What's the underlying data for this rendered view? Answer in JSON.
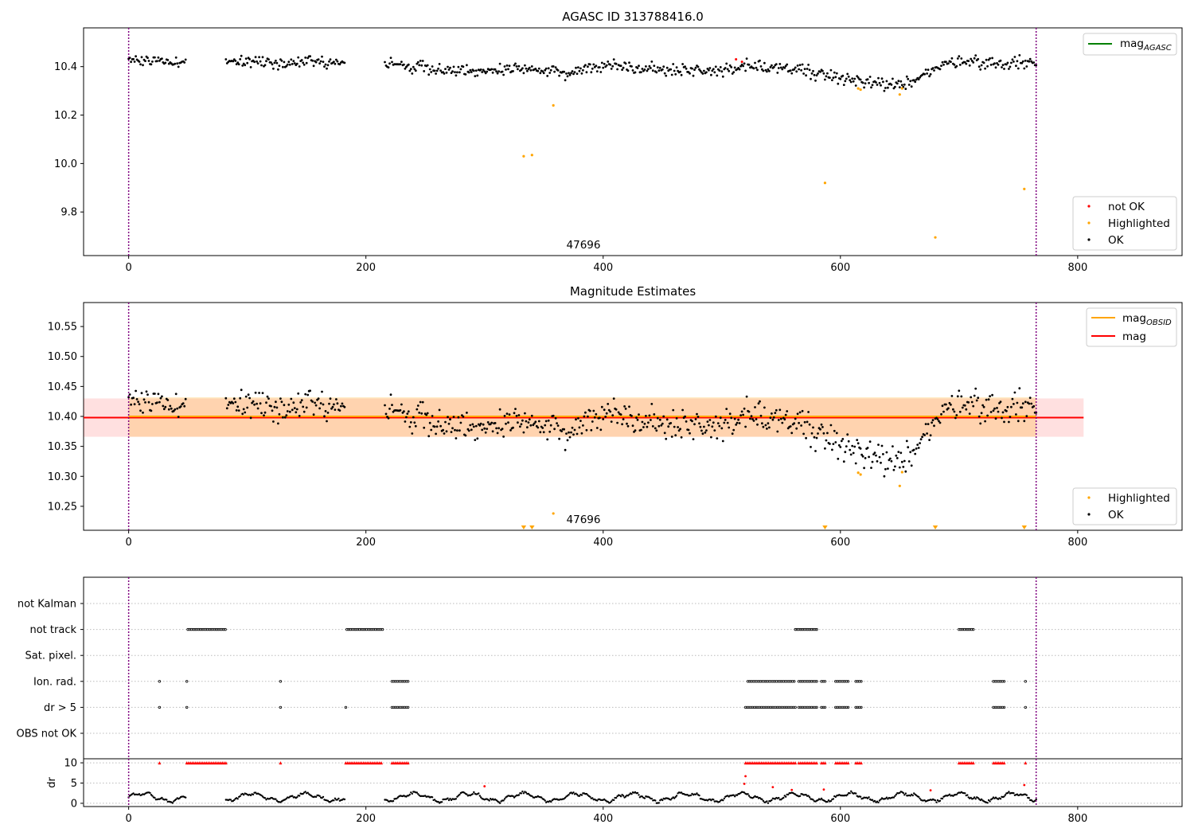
{
  "colors": {
    "ok": "#000000",
    "highlighted": "#ffa500",
    "not_ok": "#ff0000",
    "mag_agasc": "#008000",
    "mag_obsid": "#ffa500",
    "mag": "#ff0000",
    "boundary": "#800080"
  },
  "chart_data": [
    {
      "type": "scatter",
      "title": "AGASC ID 313788416.0",
      "xlim": [
        -38,
        888
      ],
      "ylim": [
        9.62,
        10.56
      ],
      "x_ticks": [
        0,
        200,
        400,
        600,
        800
      ],
      "x_tick_labels": [
        "0",
        "200",
        "400",
        "600",
        "800"
      ],
      "y_ticks": [
        9.8,
        10.0,
        10.2,
        10.4
      ],
      "y_tick_labels": [
        "9.8",
        "10.0",
        "10.2",
        "10.4"
      ],
      "obsid_boundaries": [
        0,
        765
      ],
      "obsid_label": {
        "text": "47696",
        "x": 382
      },
      "legend_upper_right": [
        {
          "label": "mag",
          "subscript": "AGASC",
          "kind": "line",
          "color_key": "mag_agasc"
        }
      ],
      "legend_lower_right": [
        {
          "label": "not OK",
          "kind": "dot",
          "color_key": "not_ok"
        },
        {
          "label": "Highlighted",
          "kind": "dot",
          "color_key": "highlighted"
        },
        {
          "label": "OK",
          "kind": "dot",
          "color_key": "ok"
        }
      ],
      "segments": [
        [
          0,
          48
        ],
        [
          82,
          182
        ],
        [
          216,
          765
        ]
      ],
      "trend": [
        [
          0,
          10.43
        ],
        [
          50,
          10.42
        ],
        [
          100,
          10.42
        ],
        [
          150,
          10.42
        ],
        [
          180,
          10.42
        ],
        [
          220,
          10.41
        ],
        [
          260,
          10.39
        ],
        [
          300,
          10.38
        ],
        [
          340,
          10.39
        ],
        [
          370,
          10.37
        ],
        [
          400,
          10.41
        ],
        [
          440,
          10.39
        ],
        [
          500,
          10.38
        ],
        [
          520,
          10.41
        ],
        [
          560,
          10.39
        ],
        [
          590,
          10.37
        ],
        [
          620,
          10.33
        ],
        [
          650,
          10.32
        ],
        [
          670,
          10.37
        ],
        [
          700,
          10.43
        ],
        [
          730,
          10.41
        ],
        [
          765,
          10.42
        ]
      ],
      "highlighted_points": [
        [
          333,
          10.03
        ],
        [
          340,
          10.035
        ],
        [
          358,
          10.24
        ],
        [
          615,
          10.31
        ],
        [
          617,
          10.305
        ],
        [
          650,
          10.285
        ],
        [
          652,
          10.31
        ],
        [
          587,
          9.92
        ],
        [
          680,
          9.695
        ],
        [
          755,
          9.895
        ]
      ]
    },
    {
      "type": "scatter",
      "title": "Magnitude Estimates",
      "xlim": [
        -38,
        888
      ],
      "ylim": [
        10.21,
        10.59
      ],
      "x_ticks": [
        0,
        200,
        400,
        600,
        800
      ],
      "x_tick_labels": [
        "0",
        "200",
        "400",
        "600",
        "800"
      ],
      "y_ticks": [
        10.25,
        10.3,
        10.35,
        10.4,
        10.45,
        10.5,
        10.55
      ],
      "y_tick_labels": [
        "10.25",
        "10.30",
        "10.35",
        "10.40",
        "10.45",
        "10.50",
        "10.55"
      ],
      "obsid_boundaries": [
        0,
        765
      ],
      "obsid_label": {
        "text": "47696",
        "x": 382
      },
      "mag": 10.398,
      "mag_band": [
        10.366,
        10.43
      ],
      "mag_band_x": [
        -38,
        805
      ],
      "mag_obsid": 10.4,
      "mag_obsid_band": [
        10.366,
        10.432
      ],
      "mag_obsid_x": [
        0,
        765
      ],
      "legend_upper_right": [
        {
          "label": "mag",
          "subscript": "OBSID",
          "kind": "line",
          "color_key": "mag_obsid"
        },
        {
          "label": "mag",
          "subscript": "",
          "kind": "line",
          "color_key": "mag"
        }
      ],
      "legend_lower_right": [
        {
          "label": "Highlighted",
          "kind": "dot",
          "color_key": "highlighted"
        },
        {
          "label": "OK",
          "kind": "dot",
          "color_key": "ok"
        }
      ],
      "highlighted_points": [
        [
          358,
          10.238
        ],
        [
          615,
          10.306
        ],
        [
          617,
          10.303
        ],
        [
          650,
          10.284
        ],
        [
          652,
          10.307
        ]
      ],
      "offscale_markers_x": [
        333,
        340,
        587,
        680,
        755
      ]
    },
    {
      "type": "scatter",
      "title": "",
      "xlim": [
        -38,
        888
      ],
      "flag_rows": [
        "not Kalman",
        "not track",
        "Sat. pixel.",
        "Ion. rad.",
        "dr > 5",
        "OBS not OK"
      ],
      "flag_ranges": {
        "not Kalman": [],
        "not track": [
          [
            50,
            82
          ],
          [
            184,
            214
          ],
          [
            562,
            580
          ],
          [
            700,
            712
          ]
        ],
        "Sat. pixel.": [],
        "Ion. rad.": [
          [
            26,
            26
          ],
          [
            49,
            49
          ],
          [
            128,
            128
          ],
          [
            222,
            236
          ],
          [
            522,
            562
          ],
          [
            565,
            580
          ],
          [
            584,
            587
          ],
          [
            596,
            607
          ],
          [
            613,
            618
          ],
          [
            729,
            739
          ],
          [
            756,
            756
          ]
        ],
        "dr > 5": [
          [
            26,
            26
          ],
          [
            49,
            49
          ],
          [
            128,
            128
          ],
          [
            183,
            183
          ],
          [
            222,
            236
          ],
          [
            520,
            562
          ],
          [
            565,
            580
          ],
          [
            584,
            587
          ],
          [
            596,
            607
          ],
          [
            613,
            618
          ],
          [
            729,
            739
          ],
          [
            756,
            756
          ]
        ],
        "OBS not OK": []
      }
    },
    {
      "type": "scatter",
      "title": "",
      "xlim": [
        -38,
        888
      ],
      "ylim": [
        -0.8,
        11
      ],
      "ylabel": "dr",
      "x_ticks": [
        0,
        200,
        400,
        600,
        800
      ],
      "x_tick_labels": [
        "0",
        "200",
        "400",
        "600",
        "800"
      ],
      "y_ticks": [
        0,
        5,
        10
      ],
      "y_tick_labels": [
        "0",
        "5",
        "10"
      ],
      "obsid_boundaries": [
        0,
        765
      ],
      "segments": [
        [
          0,
          48
        ],
        [
          82,
          182
        ],
        [
          216,
          765
        ]
      ],
      "not_ok_capped_ranges": [
        [
          26,
          26
        ],
        [
          49,
          82
        ],
        [
          128,
          128
        ],
        [
          183,
          214
        ],
        [
          222,
          236
        ],
        [
          520,
          562
        ],
        [
          565,
          580
        ],
        [
          584,
          587
        ],
        [
          596,
          607
        ],
        [
          613,
          618
        ],
        [
          700,
          712
        ],
        [
          729,
          739
        ],
        [
          756,
          756
        ]
      ],
      "not_ok_points": [
        [
          300,
          4.2
        ],
        [
          520,
          6.7
        ],
        [
          519,
          4.8
        ],
        [
          543,
          4.0
        ],
        [
          559,
          3.3
        ],
        [
          586,
          3.4
        ],
        [
          676,
          3.2
        ],
        [
          755,
          4.5
        ]
      ]
    }
  ]
}
